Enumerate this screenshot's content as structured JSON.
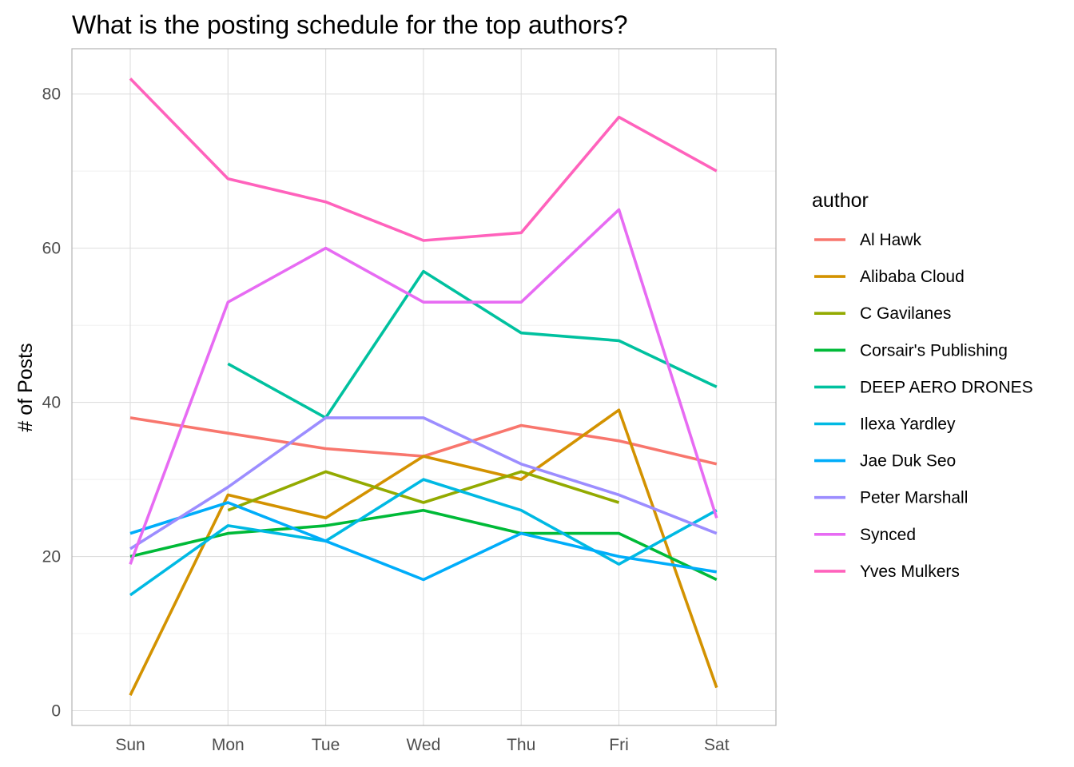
{
  "chart_data": {
    "type": "line",
    "title": "What is the posting schedule for the top authors?",
    "xlabel": "",
    "ylabel": "# of Posts",
    "categories": [
      "Sun",
      "Mon",
      "Tue",
      "Wed",
      "Thu",
      "Fri",
      "Sat"
    ],
    "ylim": [
      0,
      85
    ],
    "yticks": [
      0,
      20,
      40,
      60,
      80
    ],
    "grid": true,
    "legend": {
      "title": "author",
      "placement": "right"
    },
    "series": [
      {
        "name": "Al Hawk",
        "color": "#F8766D",
        "values": [
          38,
          36,
          34,
          33,
          37,
          35,
          32
        ]
      },
      {
        "name": "Alibaba Cloud",
        "color": "#D39200",
        "values": [
          2,
          28,
          25,
          33,
          30,
          39,
          3
        ]
      },
      {
        "name": "C Gavilanes",
        "color": "#93AA00",
        "values": [
          null,
          26,
          31,
          27,
          31,
          27,
          null
        ]
      },
      {
        "name": "Corsair's Publishing",
        "color": "#00BA38",
        "values": [
          20,
          23,
          24,
          26,
          23,
          23,
          17
        ]
      },
      {
        "name": "DEEP AERO DRONES",
        "color": "#00C19F",
        "values": [
          null,
          45,
          38,
          57,
          49,
          48,
          42
        ]
      },
      {
        "name": "Ilexa Yardley",
        "color": "#00B9E3",
        "values": [
          15,
          24,
          22,
          30,
          26,
          19,
          26
        ]
      },
      {
        "name": "Jae Duk Seo",
        "color": "#00ADFA",
        "values": [
          23,
          27,
          22,
          17,
          23,
          20,
          18
        ]
      },
      {
        "name": "Peter Marshall",
        "color": "#9C8DFF",
        "values": [
          21,
          29,
          38,
          38,
          32,
          28,
          23
        ]
      },
      {
        "name": "Synced",
        "color": "#E76BF3",
        "values": [
          19,
          53,
          60,
          53,
          53,
          65,
          25
        ]
      },
      {
        "name": "Yves Mulkers",
        "color": "#FF62BC",
        "values": [
          82,
          69,
          66,
          61,
          62,
          77,
          70
        ]
      }
    ]
  }
}
